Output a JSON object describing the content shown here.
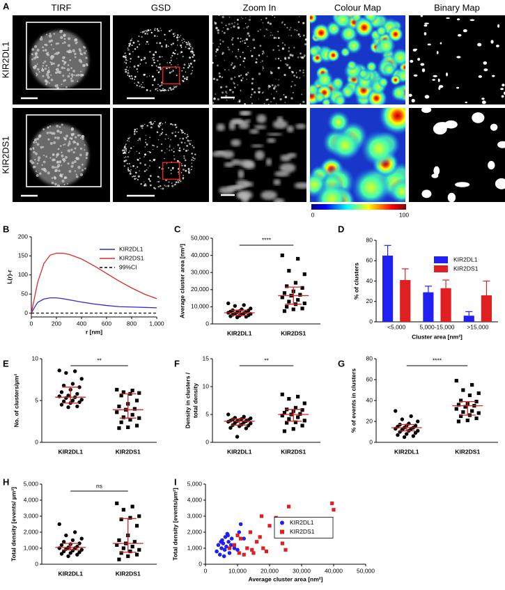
{
  "panel_a": {
    "label": "A",
    "columns": [
      "TIRF",
      "GSD",
      "Zoom In",
      "Colour Map",
      "Binary Map"
    ],
    "rows": [
      "KIR2DL1",
      "KIR2DS1"
    ],
    "colorbar": {
      "range": [
        0,
        100
      ]
    }
  },
  "chart_data": [
    {
      "type": "line",
      "label": "B",
      "x_label": "r [nm]",
      "y_label": "L(r)-r",
      "x": [
        0,
        25,
        50,
        100,
        150,
        200,
        250,
        300,
        400,
        500,
        600,
        700,
        800,
        900,
        1000
      ],
      "series": [
        {
          "name": "KIR2DL1",
          "color": "#2b2bd9",
          "style": "solid",
          "values": [
            0,
            15,
            28,
            37,
            40,
            40,
            38,
            35,
            29,
            24,
            20,
            17,
            16,
            15,
            14
          ]
        },
        {
          "name": "KIR2DS1",
          "color": "#d92b2b",
          "style": "solid",
          "values": [
            0,
            40,
            80,
            130,
            152,
            157,
            157,
            154,
            142,
            124,
            104,
            84,
            66,
            50,
            38
          ]
        },
        {
          "name": "99%CI",
          "color": "#000000",
          "style": "dashed",
          "values": [
            0,
            0,
            0,
            0,
            0,
            0,
            0,
            0,
            0,
            0,
            0,
            0,
            0,
            0,
            0
          ]
        }
      ],
      "xlim": [
        0,
        1000
      ],
      "xticks": [
        0,
        200,
        400,
        600,
        800,
        {
          "value": 1000,
          "label": "1,000"
        }
      ],
      "ylim": [
        -10,
        200
      ],
      "yticks": [
        0,
        50,
        100,
        150,
        200
      ],
      "legend_loc": "upper right"
    },
    {
      "type": "dot",
      "label": "C",
      "y_label": "Average cluster area [nm²]",
      "categories": [
        "KIR2DL1",
        "KIR2DS1"
      ],
      "groups": [
        {
          "marker": "circle",
          "values": [
            12000,
            11000,
            10500,
            9000,
            8500,
            8000,
            7800,
            7500,
            7200,
            7000,
            6800,
            6500,
            6300,
            6000,
            5800,
            5600,
            5400,
            5000,
            4800,
            4500,
            4200,
            3800
          ],
          "median": 6500,
          "iqr": [
            5000,
            8000
          ]
        },
        {
          "marker": "square",
          "values": [
            40000,
            38000,
            31000,
            29000,
            24000,
            22000,
            21000,
            19000,
            18000,
            17000,
            16500,
            15500,
            14000,
            13000,
            12000,
            11500,
            10000,
            9000,
            8500,
            7500
          ],
          "median": 16500,
          "iqr": [
            11500,
            21500
          ]
        }
      ],
      "point_color": "#000000",
      "summary_color": "#d62020",
      "significance": "****",
      "ylim": [
        0,
        50000
      ],
      "yticks": [
        0,
        {
          "value": 10000,
          "label": "10,000"
        },
        {
          "value": 20000,
          "label": "20,000"
        },
        {
          "value": 30000,
          "label": "30,000"
        },
        {
          "value": 40000,
          "label": "40,000"
        },
        {
          "value": 50000,
          "label": "50,000"
        }
      ]
    },
    {
      "type": "bar",
      "label": "D",
      "x_label": "Cluster area [nm²]",
      "y_label": "% of clusters",
      "categories": [
        "<5,000",
        "5,000-15,000",
        ">15,000"
      ],
      "series": [
        {
          "name": "KIR2DL1",
          "color": "#2020f0",
          "values": [
            65,
            29,
            6
          ],
          "errors": [
            10,
            6,
            4
          ]
        },
        {
          "name": "KIR2DS1",
          "color": "#e02020",
          "values": [
            41,
            33,
            26
          ],
          "errors": [
            11,
            8,
            14
          ]
        }
      ],
      "ylim": [
        0,
        80
      ],
      "yticks": [
        0,
        20,
        40,
        60,
        80
      ],
      "legend_loc": "upper right"
    },
    {
      "type": "dot",
      "label": "E",
      "y_label": "No. of clusters/µm²",
      "categories": [
        "KIR2DL1",
        "KIR2DS1"
      ],
      "groups": [
        {
          "marker": "circle",
          "values": [
            8.6,
            8.5,
            8.3,
            7.6,
            7.0,
            6.8,
            6.6,
            6.3,
            6.0,
            5.8,
            5.6,
            5.5,
            5.4,
            5.3,
            5.1,
            5.0,
            4.9,
            4.8,
            4.7,
            4.5,
            4.3,
            4.2
          ],
          "median": 5.4,
          "iqr": [
            4.7,
            6.6
          ]
        },
        {
          "marker": "square",
          "values": [
            6.3,
            6.2,
            6.0,
            5.9,
            5.8,
            5.6,
            5.0,
            4.6,
            4.3,
            4.0,
            3.9,
            3.6,
            3.3,
            3.0,
            2.9,
            2.7,
            2.4,
            2.0,
            1.8,
            1.7
          ],
          "median": 3.9,
          "iqr": [
            2.9,
            5.8
          ]
        }
      ],
      "point_color": "#000000",
      "summary_color": "#d62020",
      "significance": "**",
      "ylim": [
        0,
        10
      ],
      "yticks": [
        0,
        5,
        10
      ]
    },
    {
      "type": "dot",
      "label": "F",
      "y_label": [
        "Density in clusters /",
        "total density"
      ],
      "categories": [
        "KIR2DL1",
        "KIR2DS1"
      ],
      "groups": [
        {
          "marker": "circle",
          "values": [
            5.0,
            4.6,
            4.4,
            4.3,
            4.2,
            4.1,
            4.0,
            4.0,
            3.9,
            3.8,
            3.8,
            3.7,
            3.6,
            3.5,
            3.4,
            3.2,
            3.1,
            3.0,
            2.9,
            2.6,
            2.5,
            1.0
          ],
          "median": 3.8,
          "iqr": [
            3.1,
            4.2
          ]
        },
        {
          "marker": "square",
          "values": [
            8.6,
            8.2,
            7.8,
            7.0,
            6.2,
            5.9,
            5.8,
            5.6,
            5.3,
            5.1,
            5.0,
            4.8,
            4.5,
            4.2,
            3.9,
            3.6,
            3.5,
            3.0,
            2.4,
            2.0
          ],
          "median": 5.0,
          "iqr": [
            3.8,
            5.9
          ]
        }
      ],
      "point_color": "#000000",
      "summary_color": "#d62020",
      "significance": "**",
      "ylim": [
        0,
        15
      ],
      "yticks": [
        0,
        5,
        10,
        15
      ]
    },
    {
      "type": "dot",
      "label": "G",
      "y_label": "% of events in clusters",
      "categories": [
        "KIR2DL1",
        "KIR2DS1"
      ],
      "groups": [
        {
          "marker": "circle",
          "values": [
            30,
            25,
            22,
            20,
            18,
            17,
            16,
            16,
            15,
            14,
            14,
            13,
            13,
            12,
            11,
            11,
            10,
            9,
            8,
            7,
            6,
            5
          ],
          "median": 14,
          "iqr": [
            11,
            17
          ]
        },
        {
          "marker": "square",
          "values": [
            59,
            55,
            50,
            47,
            45,
            40,
            39,
            37,
            36,
            35,
            34,
            32,
            30,
            29,
            28,
            26,
            25,
            23,
            21,
            20
          ],
          "median": 35,
          "iqr": [
            26,
            39
          ]
        }
      ],
      "point_color": "#000000",
      "summary_color": "#d62020",
      "significance": "****",
      "ylim": [
        0,
        80
      ],
      "yticks": [
        0,
        20,
        40,
        60,
        80
      ]
    },
    {
      "type": "dot",
      "label": "H",
      "y_label": "Total density [events/ µm²]",
      "categories": [
        "KIR2DL1",
        "KIR2DS1"
      ],
      "groups": [
        {
          "marker": "circle",
          "values": [
            2500,
            2000,
            1800,
            1600,
            1500,
            1400,
            1300,
            1250,
            1200,
            1100,
            1050,
            1000,
            1000,
            950,
            900,
            850,
            800,
            750,
            700,
            650,
            600,
            500
          ],
          "median": 1050,
          "iqr": [
            900,
            1300
          ]
        },
        {
          "marker": "square",
          "values": [
            3800,
            3600,
            3400,
            3000,
            2900,
            2800,
            2400,
            1800,
            1500,
            1400,
            1300,
            1200,
            1100,
            1000,
            900,
            800,
            700,
            600,
            500,
            300
          ],
          "median": 1300,
          "iqr": [
            750,
            2850
          ]
        }
      ],
      "point_color": "#000000",
      "summary_color": "#d62020",
      "significance": "ns",
      "ylim": [
        0,
        5000
      ],
      "yticks": [
        0,
        {
          "value": 1000,
          "label": "1,000"
        },
        {
          "value": 2000,
          "label": "2,000"
        },
        {
          "value": 3000,
          "label": "3,000"
        },
        {
          "value": 4000,
          "label": "4,000"
        },
        {
          "value": 5000,
          "label": "5,000"
        }
      ]
    },
    {
      "type": "scatter",
      "label": "I",
      "x_label": "Average cluster area [nm²]",
      "y_label": "Total density [events/µm²]",
      "series": [
        {
          "name": "KIR2DL1",
          "color": "#2020f0",
          "marker": "circle",
          "x": [
            3500,
            4000,
            4500,
            5000,
            5200,
            5500,
            6000,
            6200,
            6500,
            7000,
            7200,
            7500,
            8000,
            8200,
            9000,
            10000,
            10500,
            11000,
            12000,
            4800,
            5800,
            6800
          ],
          "values": [
            800,
            1200,
            600,
            1000,
            1500,
            1300,
            900,
            1700,
            1100,
            1800,
            1400,
            700,
            1200,
            1600,
            1000,
            900,
            2000,
            2500,
            1600,
            1400,
            500,
            1900
          ]
        },
        {
          "name": "KIR2DS1",
          "color": "#e02020",
          "marker": "square",
          "x": [
            7500,
            9000,
            10000,
            10500,
            11000,
            12000,
            13000,
            14000,
            14500,
            15000,
            16000,
            17000,
            17500,
            18000,
            19000,
            20000,
            22000,
            24000,
            25000,
            26000,
            39500,
            40000
          ],
          "values": [
            1000,
            1200,
            1800,
            700,
            1600,
            600,
            1000,
            2000,
            900,
            700,
            1400,
            1700,
            3000,
            1000,
            800,
            2400,
            2900,
            1300,
            900,
            3600,
            3800,
            3400
          ]
        }
      ],
      "xlim": [
        0,
        50000
      ],
      "xticks": [
        0,
        {
          "value": 10000,
          "label": "10,000"
        },
        {
          "value": 20000,
          "label": "20,000"
        },
        {
          "value": 30000,
          "label": "30,000"
        },
        {
          "value": 40000,
          "label": "40,000"
        },
        {
          "value": 50000,
          "label": "50,000"
        }
      ],
      "ylim": [
        0,
        5000
      ],
      "yticks": [
        0,
        {
          "value": 1000,
          "label": "1,000"
        },
        {
          "value": 2000,
          "label": "2,000"
        },
        {
          "value": 3000,
          "label": "3,000"
        },
        {
          "value": 4000,
          "label": "4,000"
        },
        {
          "value": 5000,
          "label": "5,000"
        }
      ],
      "legend_loc": "center right"
    }
  ]
}
